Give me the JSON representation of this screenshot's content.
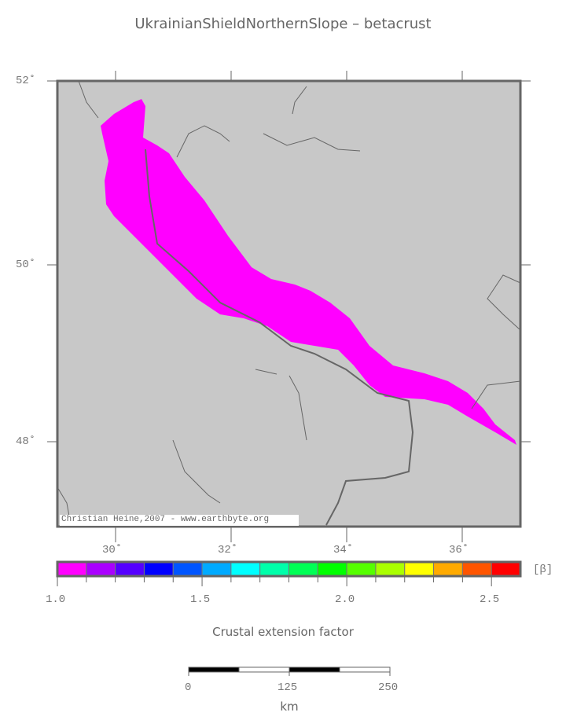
{
  "title": "UkrainianShieldNorthernSlope – betacrust",
  "map": {
    "lat_labels": [
      "52˚",
      "50˚",
      "48˚"
    ],
    "lon_labels": [
      "30˚",
      "32˚",
      "34˚",
      "36˚"
    ],
    "extent": {
      "lon": [
        29,
        37
      ],
      "lat": [
        47,
        52
      ]
    },
    "background_color": "#c8c8c8",
    "region_color": "#ff00ff",
    "credit": "Christian Heine,2007 - www.earthbyte.org"
  },
  "colorbar": {
    "unit": "[β]",
    "tick_labels": [
      "1.0",
      "1.5",
      "2.0",
      "2.5"
    ],
    "range": [
      1.0,
      2.6
    ],
    "colors": [
      "#ff00ff",
      "#aa00ff",
      "#5500ff",
      "#0000ff",
      "#0055ff",
      "#00aaff",
      "#00ffff",
      "#00ffaa",
      "#00ff55",
      "#00ff00",
      "#55ff00",
      "#aaff00",
      "#ffff00",
      "#ffaa00",
      "#ff5500",
      "#ff0000"
    ],
    "label": "Crustal extension factor"
  },
  "scalebar": {
    "tick_labels": [
      "0",
      "125",
      "250"
    ],
    "unit": "km"
  }
}
